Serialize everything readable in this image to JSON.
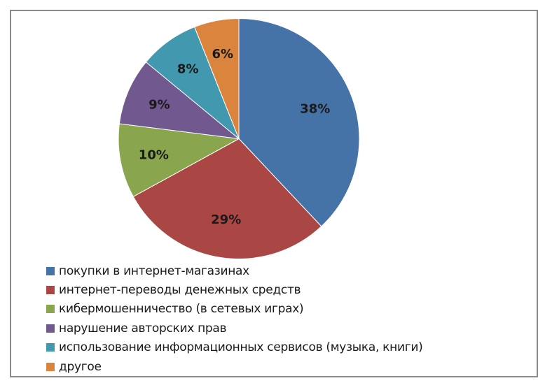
{
  "chart_data": {
    "type": "pie",
    "title": "",
    "categories": [
      "покупки в интернет-магазинах",
      "интернет-переводы денежных средств",
      "кибермошенничество (в сетевых играх)",
      "нарушение авторских прав",
      "использование информационных сервисов (музыка, книги)",
      "другое"
    ],
    "values": [
      38,
      29,
      10,
      9,
      8,
      6
    ],
    "labels": [
      "38%",
      "29%",
      "10%",
      "9%",
      "8%",
      "6%"
    ],
    "colors": [
      "#4573A7",
      "#AA4643",
      "#89A54E",
      "#71588F",
      "#4198AF",
      "#DB843D"
    ],
    "start_angle": "12 o'clock, clockwise",
    "legend_position": "bottom-left"
  },
  "legend": {
    "items": [
      {
        "label": "покупки в интернет-магазинах",
        "color": "#4573A7"
      },
      {
        "label": "интернет-переводы денежных средств",
        "color": "#AA4643"
      },
      {
        "label": "кибермошенничество (в сетевых играх)",
        "color": "#89A54E"
      },
      {
        "label": "нарушение авторских прав",
        "color": "#71588F"
      },
      {
        "label": "использование информационных сервисов (музыка, книги)",
        "color": "#4198AF"
      },
      {
        "label": "другое",
        "color": "#DB843D"
      }
    ]
  }
}
